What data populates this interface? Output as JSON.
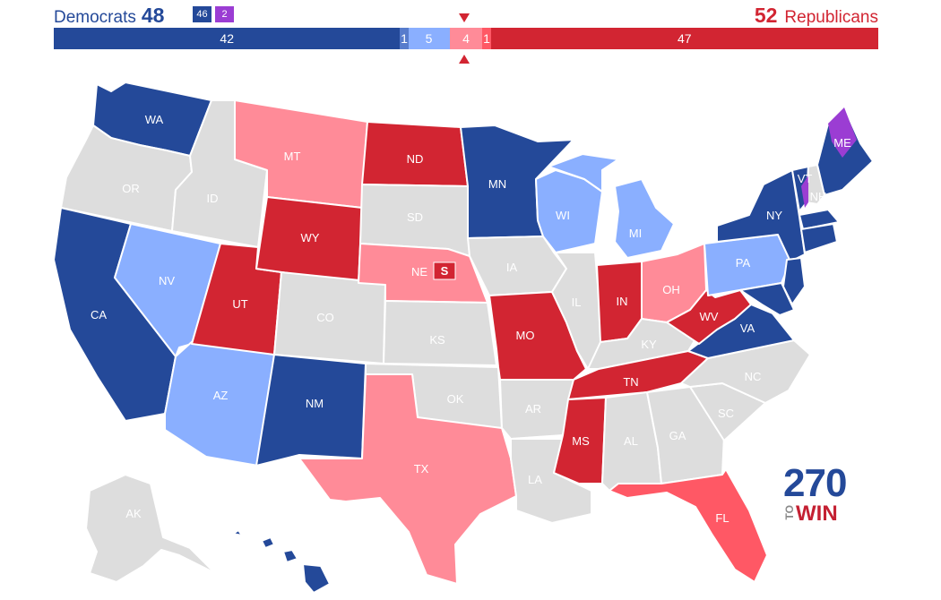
{
  "header": {
    "dem_label": "Democrats",
    "dem_total": "48",
    "rep_label": "Republicans",
    "rep_total": "52",
    "dem_badge": "46",
    "ind_badge": "2"
  },
  "colors": {
    "safe_dem": "#244999",
    "likely_dem": "#577ccc",
    "lean_dem": "#8aafff",
    "toss_up": "#dddddd",
    "lean_rep": "#ff8b98",
    "likely_rep": "#ff5865",
    "safe_rep": "#d22532",
    "independent": "#9b3dd3",
    "badge_dem": "#244999",
    "badge_ind": "#9b3dd3"
  },
  "seat_bar": [
    {
      "label": "42",
      "value": 42,
      "color": "#244999"
    },
    {
      "label": "1",
      "value": 1,
      "color": "#577ccc"
    },
    {
      "label": "5",
      "value": 5,
      "color": "#8aafff"
    },
    {
      "label": "4",
      "value": 4,
      "color": "#ff8b98"
    },
    {
      "label": "1",
      "value": 1,
      "color": "#ff5865"
    },
    {
      "label": "47",
      "value": 47,
      "color": "#d22532"
    }
  ],
  "states": {
    "WA": {
      "label": "WA",
      "rating": "safe_dem"
    },
    "OR": {
      "label": "OR",
      "rating": "toss_up"
    },
    "CA": {
      "label": "CA",
      "rating": "safe_dem"
    },
    "ID": {
      "label": "ID",
      "rating": "toss_up"
    },
    "NV": {
      "label": "NV",
      "rating": "lean_dem"
    },
    "AZ": {
      "label": "AZ",
      "rating": "lean_dem"
    },
    "UT": {
      "label": "UT",
      "rating": "safe_rep"
    },
    "MT": {
      "label": "MT",
      "rating": "lean_rep"
    },
    "WY": {
      "label": "WY",
      "rating": "safe_rep"
    },
    "CO": {
      "label": "CO",
      "rating": "toss_up"
    },
    "NM": {
      "label": "NM",
      "rating": "safe_dem"
    },
    "ND": {
      "label": "ND",
      "rating": "safe_rep"
    },
    "SD": {
      "label": "SD",
      "rating": "toss_up"
    },
    "NE": {
      "label": "NE",
      "rating": "lean_rep"
    },
    "NE_S": {
      "label": "S",
      "rating": "safe_rep"
    },
    "KS": {
      "label": "KS",
      "rating": "toss_up"
    },
    "OK": {
      "label": "OK",
      "rating": "toss_up"
    },
    "TX": {
      "label": "TX",
      "rating": "lean_rep"
    },
    "MN": {
      "label": "MN",
      "rating": "safe_dem"
    },
    "IA": {
      "label": "IA",
      "rating": "toss_up"
    },
    "MO": {
      "label": "MO",
      "rating": "safe_rep"
    },
    "AR": {
      "label": "AR",
      "rating": "toss_up"
    },
    "LA": {
      "label": "LA",
      "rating": "toss_up"
    },
    "WI": {
      "label": "WI",
      "rating": "lean_dem"
    },
    "IL": {
      "label": "IL",
      "rating": "toss_up"
    },
    "MI": {
      "label": "MI",
      "rating": "lean_dem"
    },
    "IN": {
      "label": "IN",
      "rating": "safe_rep"
    },
    "OH": {
      "label": "OH",
      "rating": "lean_rep"
    },
    "KY": {
      "label": "KY",
      "rating": "toss_up"
    },
    "TN": {
      "label": "TN",
      "rating": "safe_rep"
    },
    "MS": {
      "label": "MS",
      "rating": "safe_rep"
    },
    "AL": {
      "label": "AL",
      "rating": "toss_up"
    },
    "GA": {
      "label": "GA",
      "rating": "toss_up"
    },
    "FL": {
      "label": "FL",
      "rating": "likely_rep"
    },
    "SC": {
      "label": "SC",
      "rating": "toss_up"
    },
    "NC": {
      "label": "NC",
      "rating": "toss_up"
    },
    "VA": {
      "label": "VA",
      "rating": "safe_dem"
    },
    "WV": {
      "label": "WV",
      "rating": "safe_rep"
    },
    "PA": {
      "label": "PA",
      "rating": "lean_dem"
    },
    "NY": {
      "label": "NY",
      "rating": "safe_dem"
    },
    "VT": {
      "label": "VT",
      "rating": "safe_dem"
    },
    "NH": {
      "label": "NH",
      "rating": "toss_up"
    },
    "ME": {
      "label": "ME",
      "rating": "safe_dem"
    },
    "AK": {
      "label": "AK",
      "rating": "toss_up"
    },
    "HI": {
      "label": "HI",
      "rating": "safe_dem"
    }
  },
  "logo": {
    "number": "270",
    "to": "TO",
    "win": "WIN"
  }
}
